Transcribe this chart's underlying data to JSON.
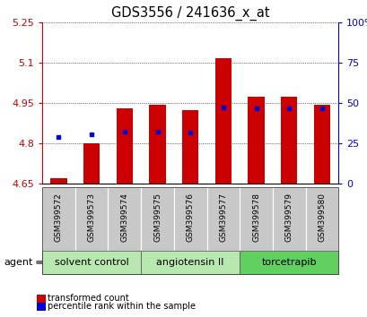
{
  "title": "GDS3556 / 241636_x_at",
  "samples": [
    "GSM399572",
    "GSM399573",
    "GSM399574",
    "GSM399575",
    "GSM399576",
    "GSM399577",
    "GSM399578",
    "GSM399579",
    "GSM399580"
  ],
  "red_values": [
    4.67,
    4.8,
    4.93,
    4.945,
    4.925,
    5.115,
    4.975,
    4.975,
    4.945
  ],
  "blue_values": [
    4.825,
    4.835,
    4.845,
    4.845,
    4.84,
    4.935,
    4.93,
    4.93,
    4.93
  ],
  "bar_base": 4.65,
  "ylim_left": [
    4.65,
    5.25
  ],
  "ylim_right": [
    0,
    100
  ],
  "yticks_left": [
    4.65,
    4.8,
    4.95,
    5.1,
    5.25
  ],
  "yticks_right": [
    0,
    25,
    50,
    75,
    100
  ],
  "ytick_labels_left": [
    "4.65",
    "4.8",
    "4.95",
    "5.1",
    "5.25"
  ],
  "ytick_labels_right": [
    "0",
    "25",
    "50",
    "75",
    "100%"
  ],
  "groups": [
    {
      "label": "solvent control",
      "start": 0,
      "end": 3
    },
    {
      "label": "angiotensin II",
      "start": 3,
      "end": 6
    },
    {
      "label": "torcetrapib",
      "start": 6,
      "end": 9
    }
  ],
  "group_colors": [
    "#b8e8b0",
    "#b8e8b0",
    "#60d060"
  ],
  "sample_box_color": "#c8c8c8",
  "red_color": "#cc0000",
  "blue_color": "#0000dd",
  "bar_width": 0.5,
  "agent_label": "agent",
  "legend_red": "transformed count",
  "legend_blue": "percentile rank within the sample",
  "left_label_color": "#cc0000",
  "right_label_color": "#0000dd",
  "title_fontsize": 10.5,
  "tick_fontsize": 8,
  "sample_fontsize": 6.5,
  "group_fontsize": 8
}
